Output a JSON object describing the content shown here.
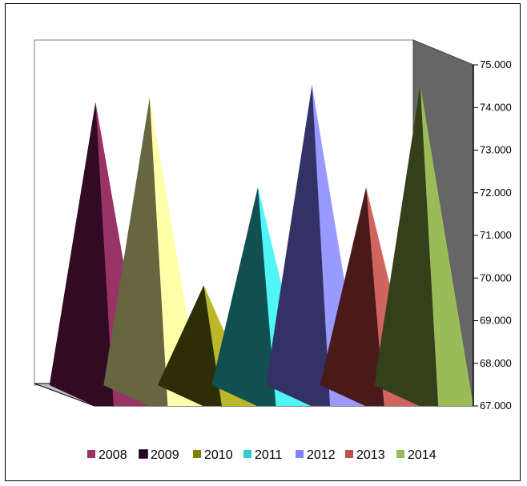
{
  "chart_data": {
    "type": "3d-pyramid-column",
    "categories": [
      "2008",
      "2009",
      "2010",
      "2011",
      "2012",
      "2013",
      "2014"
    ],
    "values": [
      74.0,
      74.1,
      69.7,
      72.0,
      74.4,
      72.0,
      74.4
    ],
    "ylim": [
      67.0,
      75.0
    ],
    "yticks": [
      "67.000",
      "68.000",
      "69.000",
      "70.000",
      "71.000",
      "72.000",
      "73.000",
      "74.000",
      "75.000"
    ],
    "title": "",
    "xlabel": "",
    "ylabel": "",
    "grid": false,
    "legend_position": "bottom",
    "series_colors": [
      {
        "light": "#993366",
        "dark": "#330A24"
      },
      {
        "light": "#FFFFAA",
        "dark": "#666640"
      },
      {
        "light": "#BCB72A",
        "dark": "#2E2E06"
      },
      {
        "light": "#50F5F5",
        "dark": "#105050"
      },
      {
        "light": "#9999FF",
        "dark": "#323266"
      },
      {
        "light": "#D06560",
        "dark": "#4A1A1A"
      },
      {
        "light": "#9BBB59",
        "dark": "#33401A"
      }
    ],
    "legend_colors": [
      "#993366",
      "#330033",
      "#808000",
      "#33CCCC",
      "#8080FF",
      "#C0504D",
      "#9BBB59"
    ],
    "wall_color": "#666666",
    "floor_color": "#C0C0C0"
  }
}
